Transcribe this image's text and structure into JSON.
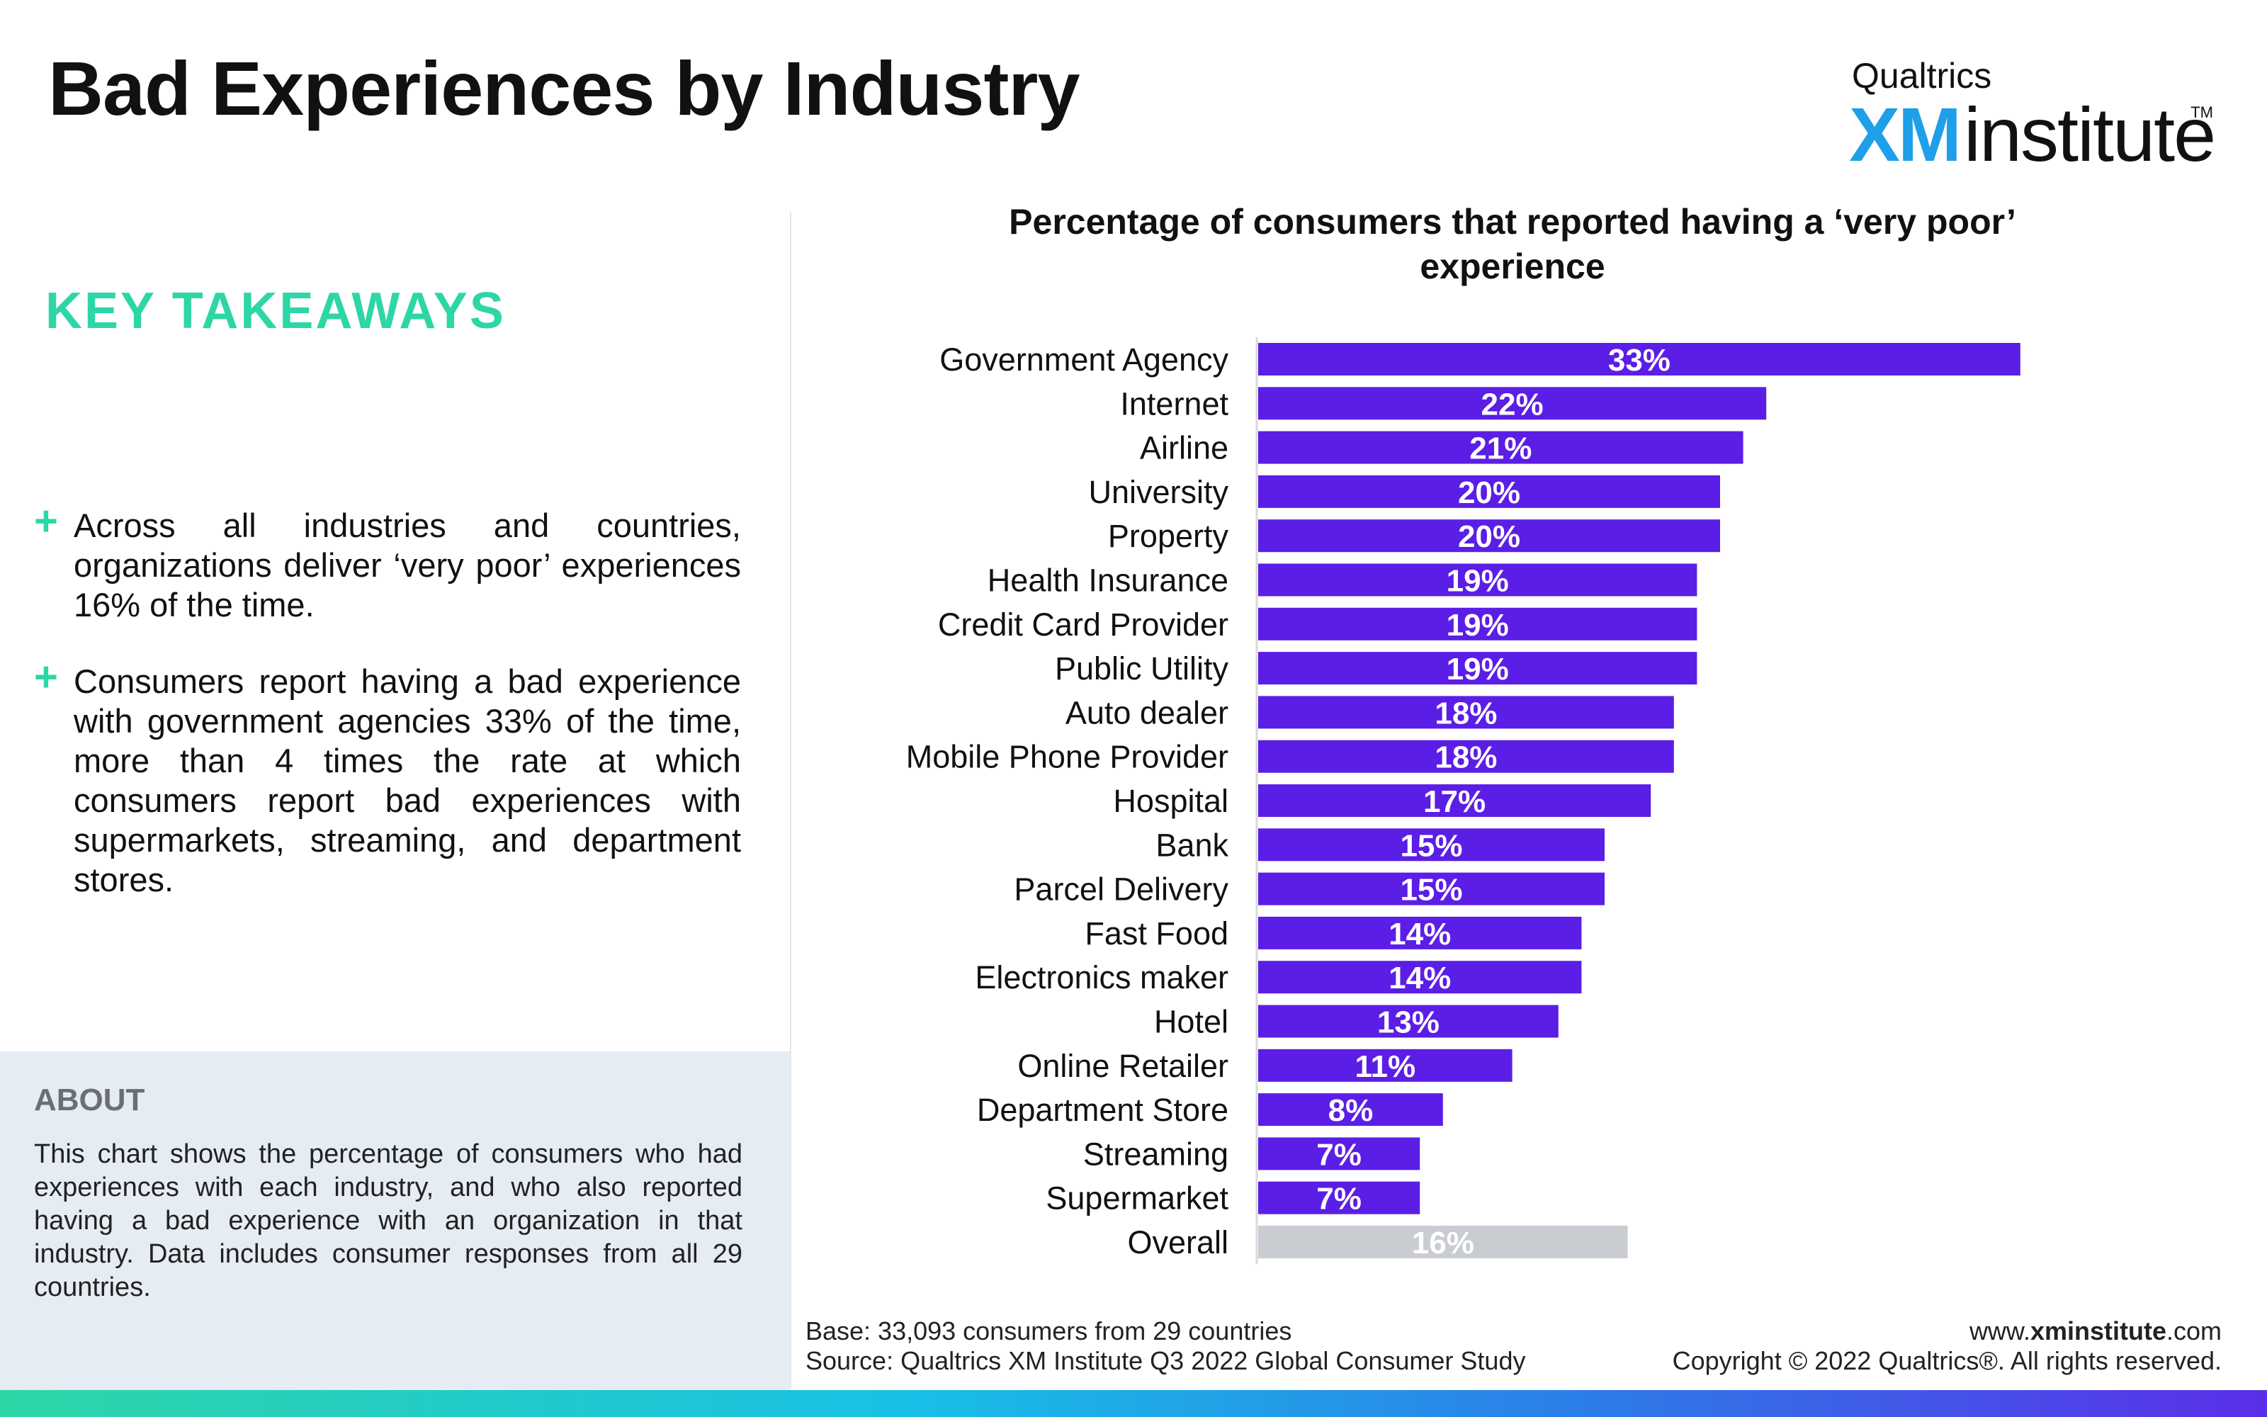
{
  "header": {
    "title": "Bad Experiences by Industry"
  },
  "logo": {
    "top": "Qualtrics",
    "xm": "XM",
    "institute": "institute",
    "tm": "TM"
  },
  "takeaways": {
    "heading": "KEY TAKEAWAYS",
    "items": [
      "Across all industries and countries, organizations deliver ‘very poor’ experiences 16% of the time.",
      "Consumers report having a bad experience with government agencies 33% of the time, more than 4 times the rate at which consumers report bad experiences with supermarkets, streaming, and department stores."
    ]
  },
  "about": {
    "heading": "ABOUT",
    "text": "This chart shows the percentage of consumers who had experiences with each industry, and who also reported having a bad experience with an organization in that industry. Data includes consumer responses from all 29 countries."
  },
  "footer": {
    "base": "Base: 33,093 consumers from 29 countries",
    "source": "Source: Qualtrics XM Institute Q3 2022 Global Consumer Study",
    "url_prefix": "www.",
    "url_bold": "xminstitute",
    "url_suffix": ".com",
    "copyright": "Copyright © 2022 Qualtrics®. All rights reserved."
  },
  "chart_data": {
    "type": "bar",
    "orientation": "horizontal",
    "title": "Percentage of consumers that reported having a ‘very poor’ experience",
    "categories": [
      "Government Agency",
      "Internet",
      "Airline",
      "University",
      "Property",
      "Health Insurance",
      "Credit Card Provider",
      "Public Utility",
      "Auto dealer",
      "Mobile Phone Provider",
      "Hospital",
      "Bank",
      "Parcel Delivery",
      "Fast Food",
      "Electronics maker",
      "Hotel",
      "Online Retailer",
      "Department Store",
      "Streaming",
      "Supermarket",
      "Overall"
    ],
    "values": [
      33,
      22,
      21,
      20,
      20,
      19,
      19,
      19,
      18,
      18,
      17,
      15,
      15,
      14,
      14,
      13,
      11,
      8,
      7,
      7,
      16
    ],
    "labels": [
      "33%",
      "22%",
      "21%",
      "20%",
      "20%",
      "19%",
      "19%",
      "19%",
      "18%",
      "18%",
      "17%",
      "15%",
      "15%",
      "14%",
      "14%",
      "13%",
      "11%",
      "8%",
      "7%",
      "7%",
      "16%"
    ],
    "highlight_category": "Overall",
    "colors": {
      "bar": "#5b1ee6",
      "highlight": "#c9ccd1",
      "label": "#ffffff"
    },
    "xlim": [
      0,
      35
    ],
    "grid": false,
    "legend": "none"
  }
}
